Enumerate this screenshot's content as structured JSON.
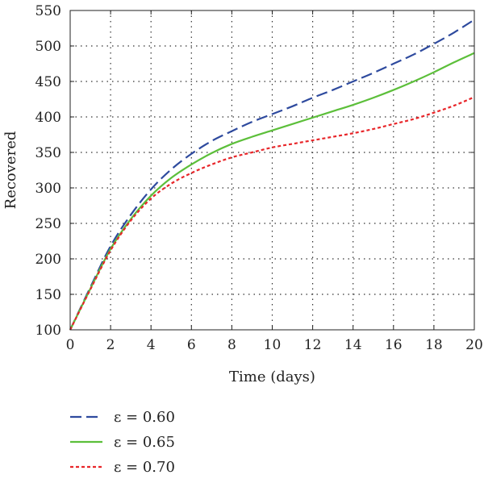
{
  "chart_data": {
    "type": "line",
    "title": "",
    "xlabel": "Time (days)",
    "ylabel": "Recovered",
    "xlim": [
      0,
      20
    ],
    "ylim": [
      100,
      550
    ],
    "x_ticks": [
      "0",
      "2",
      "4",
      "6",
      "8",
      "10",
      "12",
      "14",
      "16",
      "18",
      "20"
    ],
    "y_ticks": [
      "100",
      "150",
      "200",
      "250",
      "300",
      "350",
      "400",
      "450",
      "500",
      "550"
    ],
    "grid": "dotted",
    "legend_position": "bottom",
    "x": [
      0,
      1,
      2,
      3,
      4,
      5,
      6,
      7,
      8,
      9,
      10,
      11,
      12,
      13,
      14,
      15,
      16,
      17,
      18,
      19,
      20
    ],
    "series": [
      {
        "name": "ε = 0.60",
        "color": "#2e4a9e",
        "style": "dashed",
        "values": [
          100,
          160,
          218,
          262,
          298,
          326,
          348,
          366,
          380,
          393,
          404,
          415,
          427,
          438,
          450,
          462,
          475,
          488,
          503,
          519,
          537
        ]
      },
      {
        "name": "ε = 0.65",
        "color": "#5cbf3a",
        "style": "solid",
        "values": [
          100,
          158,
          214,
          256,
          289,
          314,
          333,
          349,
          362,
          372,
          381,
          390,
          399,
          408,
          417,
          427,
          438,
          450,
          463,
          477,
          490
        ]
      },
      {
        "name": "ε = 0.70",
        "color": "#e8262a",
        "style": "dotted",
        "values": [
          100,
          157,
          212,
          254,
          285,
          306,
          321,
          333,
          343,
          350,
          357,
          362,
          367,
          372,
          377,
          383,
          390,
          397,
          406,
          416,
          428
        ]
      }
    ]
  }
}
